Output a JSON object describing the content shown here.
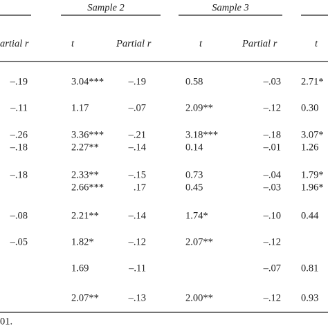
{
  "table": {
    "groups": [
      "Sample 2",
      "Sample 3"
    ],
    "columns": [
      "artial r",
      "t",
      "Partial r",
      "t",
      "Partial r",
      "t"
    ],
    "rows": [
      [
        "–.19",
        "3.04***",
        "–.19",
        "0.58",
        "–.03",
        "2.71*"
      ],
      [
        "–.11",
        "1.17",
        "–.07",
        "2.09**",
        "–.12",
        "0.30"
      ],
      [
        "–.26",
        "3.36***",
        "–.21",
        "3.18***",
        "–.18",
        "3.07*"
      ],
      [
        "–.18",
        "2.27**",
        "–.14",
        "0.14",
        "–.01",
        "1.26"
      ],
      [
        "–.18",
        "2.33**",
        "–.15",
        "0.73",
        "–.04",
        "1.79*"
      ],
      [
        null,
        "2.66***",
        ".17",
        "0.45",
        "–.03",
        "1.96*"
      ],
      [
        "–.08",
        "2.21**",
        "–.14",
        "1.74*",
        "–.10",
        "0.44"
      ],
      [
        "–.05",
        "1.82*",
        "–.12",
        "2.07**",
        "–.12",
        null
      ],
      [
        null,
        "1.69",
        "–.11",
        null,
        "–.07",
        "0.81"
      ],
      [
        null,
        "2.07**",
        "–.13",
        "2.00**",
        "–.12",
        "0.93"
      ]
    ],
    "footnote": "01."
  }
}
